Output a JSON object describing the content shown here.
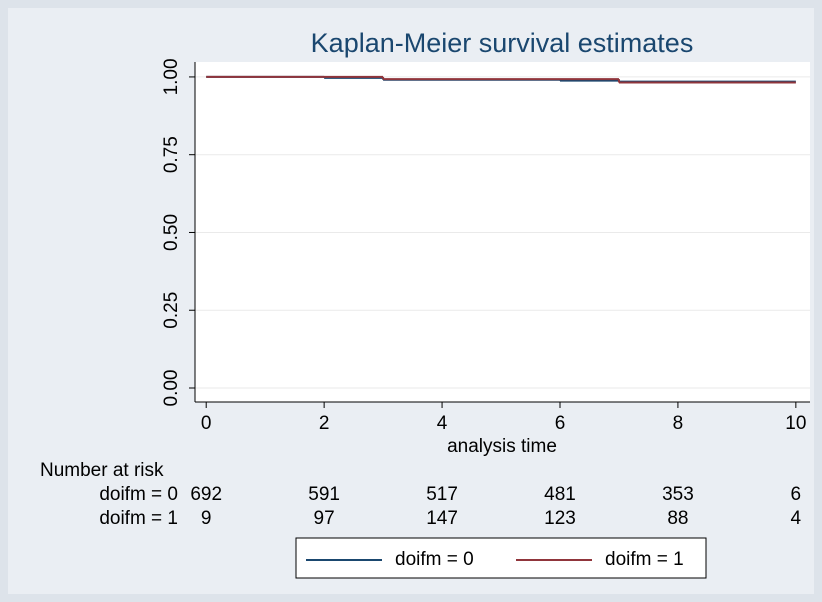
{
  "chart_data": {
    "type": "step",
    "title": "Kaplan-Meier survival estimates",
    "x_label": "analysis time",
    "xlim": [
      -0.19,
      10.24
    ],
    "ylim": [
      -0.045,
      1.048
    ],
    "xticks": [
      0,
      2,
      4,
      6,
      8,
      10
    ],
    "yticks": [
      {
        "value": 0,
        "label": "0.00"
      },
      {
        "value": 0.25,
        "label": "0.25"
      },
      {
        "value": 0.5,
        "label": "0.50"
      },
      {
        "value": 0.75,
        "label": "0.75"
      },
      {
        "value": 1,
        "label": "1.00"
      }
    ],
    "grid": true,
    "series": [
      {
        "name": "doifm = 0",
        "color": "#1a476f",
        "x": [
          0,
          2,
          3,
          6,
          7,
          10
        ],
        "values": [
          1,
          0.997,
          0.991,
          0.988,
          0.985,
          0.985
        ]
      },
      {
        "name": "doifm = 1",
        "color": "#90353b",
        "x": [
          0,
          3,
          7,
          10
        ],
        "values": [
          1,
          0.993,
          0.982,
          0.982
        ]
      }
    ],
    "risk_table": {
      "title": "Number at risk",
      "rows": [
        {
          "label": "doifm = 0",
          "values": [
            692,
            591,
            517,
            481,
            353,
            6
          ]
        },
        {
          "label": "doifm = 1",
          "values": [
            9,
            97,
            147,
            123,
            88,
            4
          ]
        }
      ]
    },
    "legend": "bottom"
  }
}
